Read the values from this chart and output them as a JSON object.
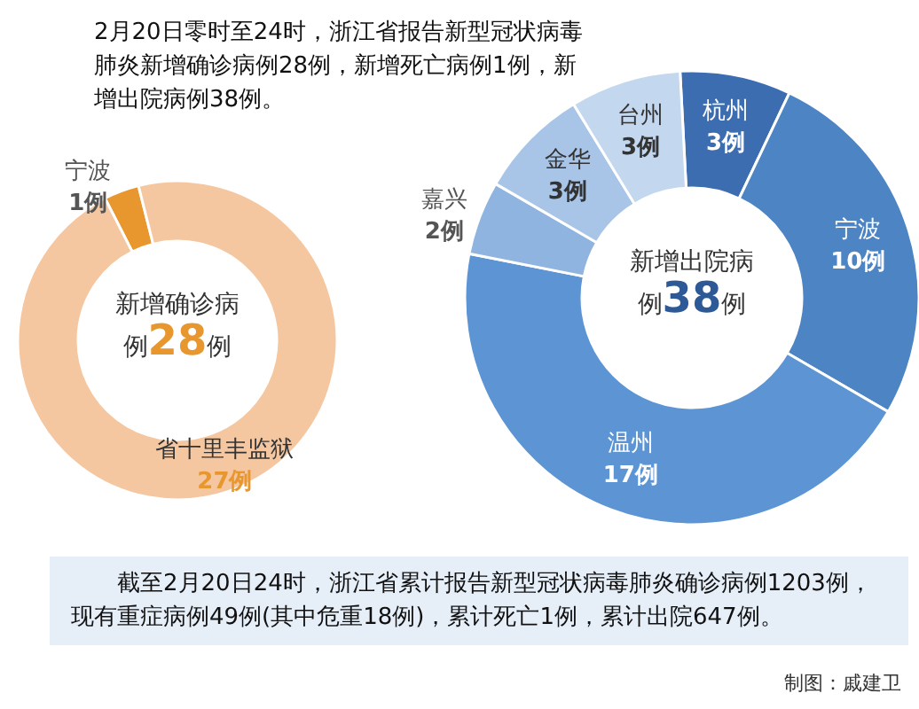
{
  "chart_data": [
    {
      "type": "donut",
      "title": "2月20日零时至24时，浙江省报告新型冠状病毒肺炎新增确诊病例28例，新增死亡病例1例，新增出院病例38例。",
      "categories": [
        "宁波",
        "省十里丰监狱"
      ],
      "values": [
        1,
        27
      ],
      "colors": [
        "#e8962e",
        "#f5c7a0"
      ],
      "value_labels": [
        "1例",
        "27例"
      ],
      "annotations": [
        "新增确诊病例28例"
      ]
    },
    {
      "type": "donut",
      "categories": [
        "杭州",
        "宁波",
        "温州",
        "嘉兴",
        "金华",
        "台州"
      ],
      "values": [
        3,
        10,
        17,
        2,
        3,
        3
      ],
      "colors": [
        "#3b6db0",
        "#4d84c4",
        "#5d95d4",
        "#8fb4e0",
        "#a8c5e8",
        "#c3d7ef"
      ],
      "value_labels": [
        "3例",
        "10例",
        "17例",
        "2例",
        "3例",
        "3例"
      ],
      "annotations": [
        "新增出院病例38例",
        "截至2月20日24时，浙江省累计报告新型冠状病毒肺炎确诊病例1203例，现有重症病例49例(其中危重18例)，累计死亡1例，累计出院647例。",
        "制图：戚建卫"
      ]
    }
  ]
}
